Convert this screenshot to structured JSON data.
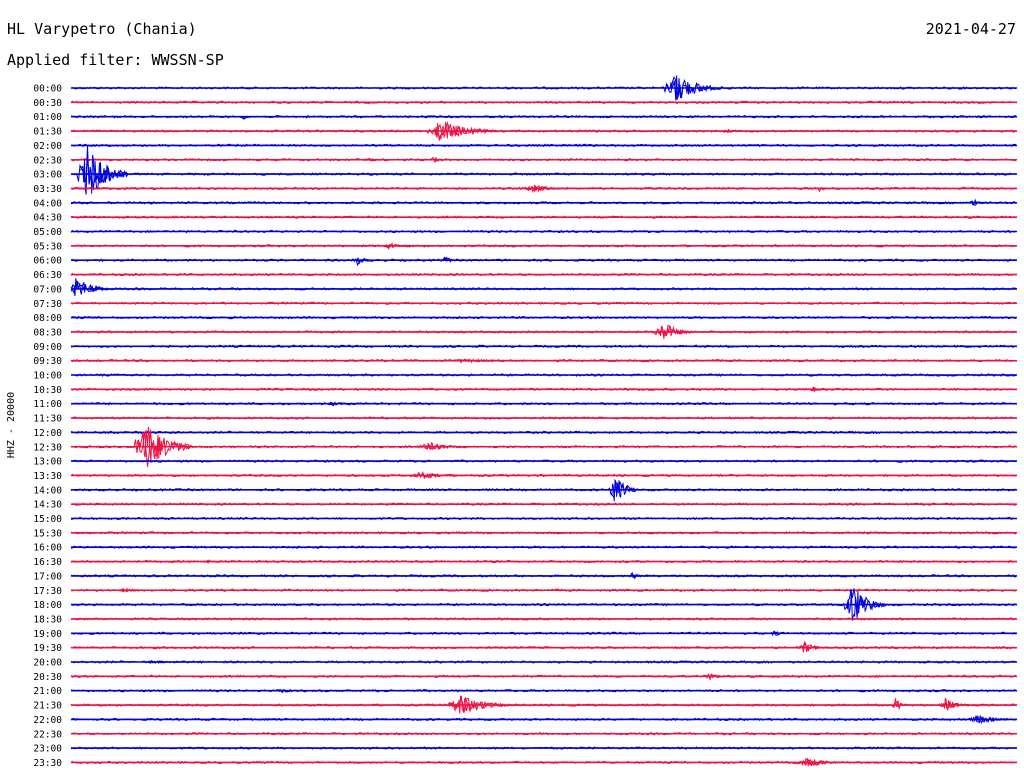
{
  "header": {
    "station": "HL Varypetro (Chania)",
    "date": "2021-04-27",
    "filter": "Applied filter: WWSSN-SP"
  },
  "chart_data": {
    "type": "line",
    "title": "HL Varypetro (Chania)",
    "ylabel": "HHZ - 20000",
    "xlabel": "",
    "colors": [
      "#0000dd",
      "#ee1144"
    ],
    "rows": [
      {
        "time": "00:00",
        "events": [
          {
            "x": 0.63,
            "amp": 15,
            "dur": 0.06
          }
        ]
      },
      {
        "time": "00:30",
        "events": []
      },
      {
        "time": "01:00",
        "events": [
          {
            "x": 0.18,
            "amp": 3,
            "dur": 0.02
          }
        ]
      },
      {
        "time": "01:30",
        "events": [
          {
            "x": 0.38,
            "amp": 12,
            "dur": 0.07
          },
          {
            "x": 0.69,
            "amp": 2,
            "dur": 0.02
          }
        ]
      },
      {
        "time": "02:00",
        "events": []
      },
      {
        "time": "02:30",
        "events": [
          {
            "x": 0.31,
            "amp": 2,
            "dur": 0.03
          },
          {
            "x": 0.38,
            "amp": 3,
            "dur": 0.02
          }
        ]
      },
      {
        "time": "03:00",
        "events": [
          {
            "x": 0.01,
            "amp": 30,
            "dur": 0.05
          }
        ]
      },
      {
        "time": "03:30",
        "events": [
          {
            "x": 0.48,
            "amp": 4,
            "dur": 0.05
          },
          {
            "x": 0.79,
            "amp": 4,
            "dur": 0.01
          }
        ]
      },
      {
        "time": "04:00",
        "events": [
          {
            "x": 0.95,
            "amp": 4,
            "dur": 0.02
          }
        ]
      },
      {
        "time": "04:30",
        "events": []
      },
      {
        "time": "05:00",
        "events": []
      },
      {
        "time": "05:30",
        "events": [
          {
            "x": 0.33,
            "amp": 3,
            "dur": 0.04
          }
        ]
      },
      {
        "time": "06:00",
        "events": [
          {
            "x": 0.3,
            "amp": 5,
            "dur": 0.02
          },
          {
            "x": 0.39,
            "amp": 3,
            "dur": 0.03
          }
        ]
      },
      {
        "time": "06:30",
        "events": []
      },
      {
        "time": "07:00",
        "events": [
          {
            "x": 0.0,
            "amp": 13,
            "dur": 0.04
          }
        ]
      },
      {
        "time": "07:30",
        "events": []
      },
      {
        "time": "08:00",
        "events": []
      },
      {
        "time": "08:30",
        "events": [
          {
            "x": 0.62,
            "amp": 10,
            "dur": 0.04
          }
        ]
      },
      {
        "time": "09:00",
        "events": []
      },
      {
        "time": "09:30",
        "events": [
          {
            "x": 0.4,
            "amp": 2,
            "dur": 0.1
          }
        ]
      },
      {
        "time": "10:00",
        "events": []
      },
      {
        "time": "10:30",
        "events": [
          {
            "x": 0.78,
            "amp": 3,
            "dur": 0.02
          }
        ]
      },
      {
        "time": "11:00",
        "events": [
          {
            "x": 0.27,
            "amp": 2,
            "dur": 0.04
          }
        ]
      },
      {
        "time": "11:30",
        "events": []
      },
      {
        "time": "12:00",
        "events": []
      },
      {
        "time": "12:30",
        "events": [
          {
            "x": 0.07,
            "amp": 25,
            "dur": 0.06
          },
          {
            "x": 0.37,
            "amp": 5,
            "dur": 0.05
          }
        ]
      },
      {
        "time": "13:00",
        "events": []
      },
      {
        "time": "13:30",
        "events": [
          {
            "x": 0.36,
            "amp": 4,
            "dur": 0.06
          }
        ]
      },
      {
        "time": "14:00",
        "events": [
          {
            "x": 0.57,
            "amp": 16,
            "dur": 0.03
          }
        ]
      },
      {
        "time": "14:30",
        "events": []
      },
      {
        "time": "15:00",
        "events": []
      },
      {
        "time": "15:30",
        "events": []
      },
      {
        "time": "16:00",
        "events": []
      },
      {
        "time": "16:30",
        "events": [
          {
            "x": 0.14,
            "amp": 2,
            "dur": 0.02
          }
        ]
      },
      {
        "time": "17:00",
        "events": [
          {
            "x": 0.59,
            "amp": 4,
            "dur": 0.02
          }
        ]
      },
      {
        "time": "17:30",
        "events": [
          {
            "x": 0.05,
            "amp": 2,
            "dur": 0.04
          }
        ]
      },
      {
        "time": "18:00",
        "events": [
          {
            "x": 0.82,
            "amp": 22,
            "dur": 0.04
          }
        ]
      },
      {
        "time": "18:30",
        "events": []
      },
      {
        "time": "19:00",
        "events": [
          {
            "x": 0.74,
            "amp": 3,
            "dur": 0.02
          }
        ]
      },
      {
        "time": "19:30",
        "events": [
          {
            "x": 0.77,
            "amp": 6,
            "dur": 0.03
          }
        ]
      },
      {
        "time": "20:00",
        "events": [
          {
            "x": 0.08,
            "amp": 2,
            "dur": 0.04
          }
        ]
      },
      {
        "time": "20:30",
        "events": [
          {
            "x": 0.67,
            "amp": 4,
            "dur": 0.03
          }
        ]
      },
      {
        "time": "21:00",
        "events": [
          {
            "x": 0.22,
            "amp": 3,
            "dur": 0.02
          }
        ]
      },
      {
        "time": "21:30",
        "events": [
          {
            "x": 0.4,
            "amp": 10,
            "dur": 0.07
          },
          {
            "x": 0.87,
            "amp": 10,
            "dur": 0.01
          },
          {
            "x": 0.92,
            "amp": 7,
            "dur": 0.03
          }
        ]
      },
      {
        "time": "22:00",
        "events": [
          {
            "x": 0.95,
            "amp": 5,
            "dur": 0.05
          }
        ]
      },
      {
        "time": "22:30",
        "events": []
      },
      {
        "time": "23:00",
        "events": []
      },
      {
        "time": "23:30",
        "events": [
          {
            "x": 0.77,
            "amp": 5,
            "dur": 0.05
          }
        ]
      }
    ]
  }
}
